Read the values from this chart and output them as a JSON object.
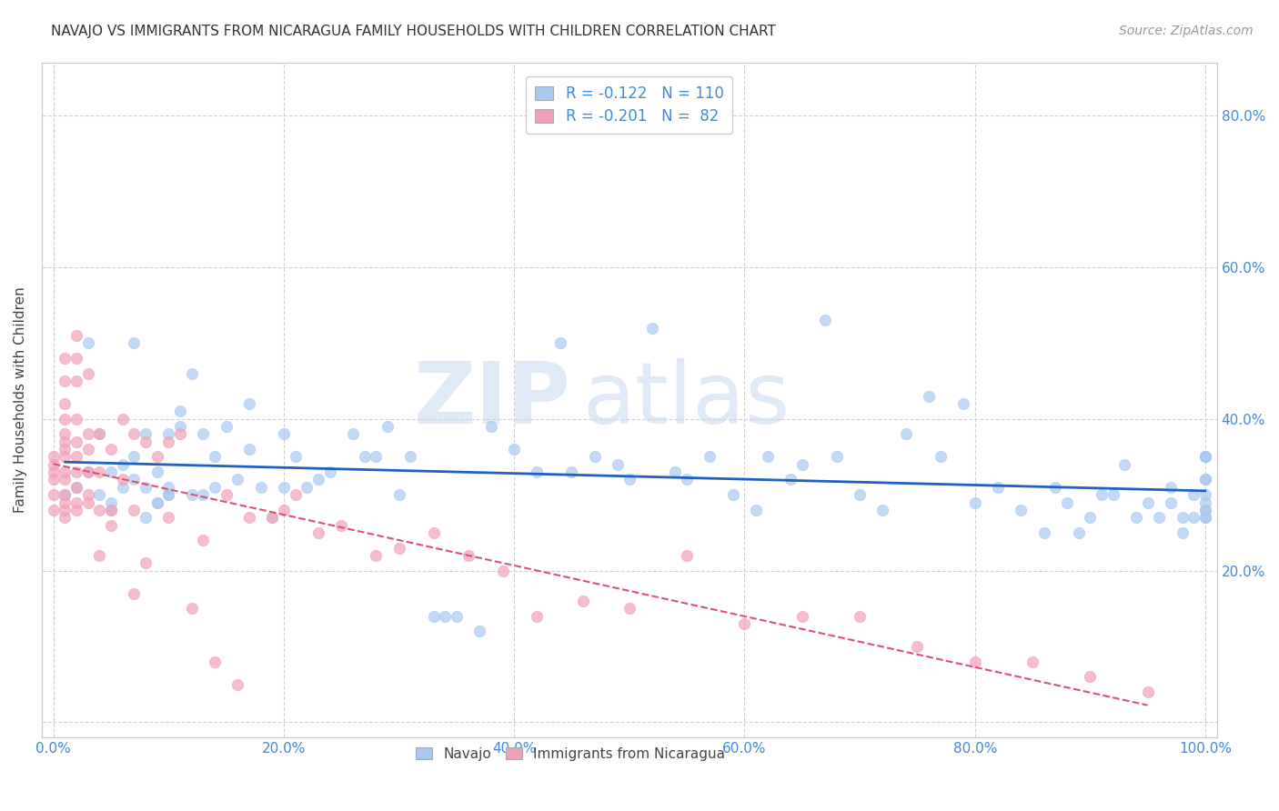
{
  "title": "NAVAJO VS IMMIGRANTS FROM NICARAGUA FAMILY HOUSEHOLDS WITH CHILDREN CORRELATION CHART",
  "source": "Source: ZipAtlas.com",
  "ylabel": "Family Households with Children",
  "xlim": [
    -0.01,
    1.01
  ],
  "ylim": [
    -0.02,
    0.87
  ],
  "yticks": [
    0.0,
    0.2,
    0.4,
    0.6,
    0.8
  ],
  "ytick_labels": [
    "",
    "20.0%",
    "40.0%",
    "60.0%",
    "80.0%"
  ],
  "xticks": [
    0.0,
    0.2,
    0.4,
    0.6,
    0.8,
    1.0
  ],
  "xtick_labels": [
    "0.0%",
    "20.0%",
    "40.0%",
    "60.0%",
    "80.0%",
    "100.0%"
  ],
  "navajo_color": "#a8c8f0",
  "nicaragua_color": "#f0a0b8",
  "navajo_line_color": "#2060c0",
  "nicaragua_line_color": "#e05070",
  "navajo_R": -0.122,
  "navajo_N": 110,
  "nicaragua_R": -0.201,
  "nicaragua_N": 82,
  "navajo_x": [
    0.01,
    0.02,
    0.03,
    0.03,
    0.04,
    0.04,
    0.05,
    0.05,
    0.05,
    0.06,
    0.06,
    0.07,
    0.07,
    0.07,
    0.08,
    0.08,
    0.08,
    0.09,
    0.09,
    0.09,
    0.1,
    0.1,
    0.1,
    0.1,
    0.11,
    0.11,
    0.12,
    0.12,
    0.13,
    0.13,
    0.14,
    0.14,
    0.15,
    0.16,
    0.17,
    0.17,
    0.18,
    0.19,
    0.2,
    0.2,
    0.21,
    0.22,
    0.23,
    0.24,
    0.26,
    0.27,
    0.28,
    0.29,
    0.3,
    0.31,
    0.33,
    0.34,
    0.35,
    0.37,
    0.38,
    0.4,
    0.42,
    0.44,
    0.45,
    0.47,
    0.49,
    0.5,
    0.52,
    0.54,
    0.55,
    0.57,
    0.59,
    0.61,
    0.62,
    0.64,
    0.65,
    0.67,
    0.68,
    0.7,
    0.72,
    0.74,
    0.76,
    0.77,
    0.79,
    0.8,
    0.82,
    0.84,
    0.86,
    0.87,
    0.88,
    0.89,
    0.9,
    0.91,
    0.92,
    0.93,
    0.94,
    0.95,
    0.96,
    0.97,
    0.97,
    0.98,
    0.98,
    0.99,
    0.99,
    1.0,
    1.0,
    1.0,
    1.0,
    1.0,
    1.0,
    1.0,
    1.0,
    1.0,
    1.0,
    1.0
  ],
  "navajo_y": [
    0.3,
    0.31,
    0.5,
    0.33,
    0.3,
    0.38,
    0.29,
    0.28,
    0.33,
    0.31,
    0.34,
    0.32,
    0.35,
    0.5,
    0.38,
    0.27,
    0.31,
    0.29,
    0.33,
    0.29,
    0.3,
    0.31,
    0.38,
    0.3,
    0.39,
    0.41,
    0.46,
    0.3,
    0.38,
    0.3,
    0.35,
    0.31,
    0.39,
    0.32,
    0.42,
    0.36,
    0.31,
    0.27,
    0.38,
    0.31,
    0.35,
    0.31,
    0.32,
    0.33,
    0.38,
    0.35,
    0.35,
    0.39,
    0.3,
    0.35,
    0.14,
    0.14,
    0.14,
    0.12,
    0.39,
    0.36,
    0.33,
    0.5,
    0.33,
    0.35,
    0.34,
    0.32,
    0.52,
    0.33,
    0.32,
    0.35,
    0.3,
    0.28,
    0.35,
    0.32,
    0.34,
    0.53,
    0.35,
    0.3,
    0.28,
    0.38,
    0.43,
    0.35,
    0.42,
    0.29,
    0.31,
    0.28,
    0.25,
    0.31,
    0.29,
    0.25,
    0.27,
    0.3,
    0.3,
    0.34,
    0.27,
    0.29,
    0.27,
    0.29,
    0.31,
    0.27,
    0.25,
    0.27,
    0.3,
    0.35,
    0.28,
    0.29,
    0.27,
    0.3,
    0.35,
    0.28,
    0.32,
    0.27,
    0.32,
    0.35
  ],
  "nicaragua_x": [
    0.0,
    0.0,
    0.0,
    0.0,
    0.0,
    0.0,
    0.01,
    0.01,
    0.01,
    0.01,
    0.01,
    0.01,
    0.01,
    0.01,
    0.01,
    0.01,
    0.01,
    0.01,
    0.01,
    0.01,
    0.02,
    0.02,
    0.02,
    0.02,
    0.02,
    0.02,
    0.02,
    0.02,
    0.02,
    0.02,
    0.03,
    0.03,
    0.03,
    0.03,
    0.03,
    0.03,
    0.04,
    0.04,
    0.04,
    0.04,
    0.05,
    0.05,
    0.05,
    0.06,
    0.06,
    0.07,
    0.07,
    0.07,
    0.08,
    0.08,
    0.09,
    0.1,
    0.1,
    0.11,
    0.12,
    0.13,
    0.14,
    0.15,
    0.16,
    0.17,
    0.19,
    0.2,
    0.21,
    0.23,
    0.25,
    0.28,
    0.3,
    0.33,
    0.36,
    0.39,
    0.42,
    0.46,
    0.5,
    0.55,
    0.6,
    0.65,
    0.7,
    0.75,
    0.8,
    0.85,
    0.9,
    0.95
  ],
  "nicaragua_y": [
    0.35,
    0.34,
    0.33,
    0.32,
    0.3,
    0.28,
    0.48,
    0.45,
    0.42,
    0.4,
    0.38,
    0.37,
    0.36,
    0.35,
    0.33,
    0.32,
    0.3,
    0.29,
    0.28,
    0.27,
    0.51,
    0.48,
    0.45,
    0.4,
    0.37,
    0.35,
    0.33,
    0.31,
    0.29,
    0.28,
    0.46,
    0.38,
    0.36,
    0.33,
    0.3,
    0.29,
    0.38,
    0.33,
    0.28,
    0.22,
    0.36,
    0.28,
    0.26,
    0.4,
    0.32,
    0.38,
    0.28,
    0.17,
    0.37,
    0.21,
    0.35,
    0.37,
    0.27,
    0.38,
    0.15,
    0.24,
    0.08,
    0.3,
    0.05,
    0.27,
    0.27,
    0.28,
    0.3,
    0.25,
    0.26,
    0.22,
    0.23,
    0.25,
    0.22,
    0.2,
    0.14,
    0.16,
    0.15,
    0.22,
    0.13,
    0.14,
    0.14,
    0.1,
    0.08,
    0.08,
    0.06,
    0.04
  ],
  "watermark_zip": "ZIP",
  "watermark_atlas": "atlas",
  "background_color": "#ffffff",
  "grid_color": "#cccccc",
  "legend1_label": "R = -0.122   N = 110",
  "legend2_label": "R = -0.201   N =  82"
}
